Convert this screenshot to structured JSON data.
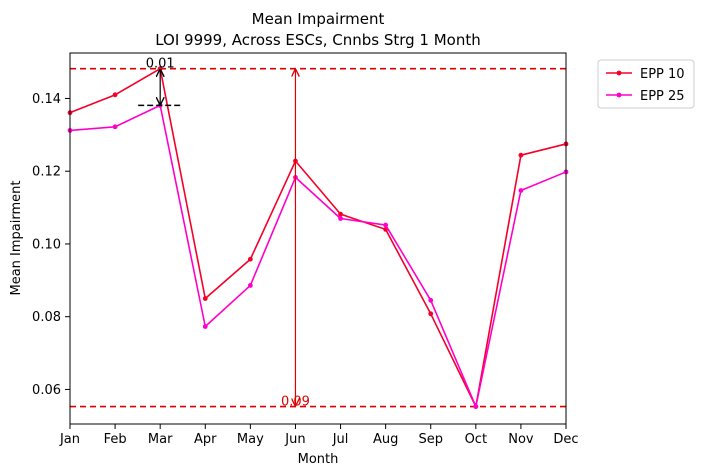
{
  "chart_data": {
    "type": "line",
    "title": "Mean Impairment",
    "subtitle": "LOI 9999, Across ESCs, Cnnbs Strg 1 Month",
    "xlabel": "Month",
    "ylabel": "Mean Impairment",
    "categories": [
      "Jan",
      "Feb",
      "Mar",
      "Apr",
      "May",
      "Jun",
      "Jul",
      "Aug",
      "Sep",
      "Oct",
      "Nov",
      "Dec"
    ],
    "ylim": [
      0.0505,
      0.1525
    ],
    "yticks": [
      0.06,
      0.08,
      0.1,
      0.12,
      0.14
    ],
    "ytick_labels": [
      "0.06",
      "0.08",
      "0.10",
      "0.12",
      "0.14"
    ],
    "grid": false,
    "legend_position": "outside-top-right",
    "series": [
      {
        "name": "EPP 10",
        "color": "#f5002a",
        "values": [
          0.1361,
          0.141,
          0.1482,
          0.085,
          0.0958,
          0.1228,
          0.1082,
          0.104,
          0.0808,
          0.0553,
          0.1244,
          0.1275
        ]
      },
      {
        "name": "EPP 25",
        "color": "#ff00cc",
        "values": [
          0.1312,
          0.1322,
          0.1381,
          0.0773,
          0.0886,
          0.1183,
          0.107,
          0.1052,
          0.0845,
          0.0553,
          0.1147,
          0.1198
        ]
      }
    ],
    "reference_lines": {
      "color": "#e00000",
      "max_value": 0.1482,
      "min_value": 0.0553
    },
    "annotations": {
      "small_diff": {
        "label": "0.01",
        "x_category": "Mar",
        "from": 0.1381,
        "to": 0.1482
      },
      "large_diff": {
        "label": "0.09",
        "x_category": "Jun",
        "from": 0.0553,
        "to": 0.1482,
        "color": "#e00000"
      }
    }
  }
}
